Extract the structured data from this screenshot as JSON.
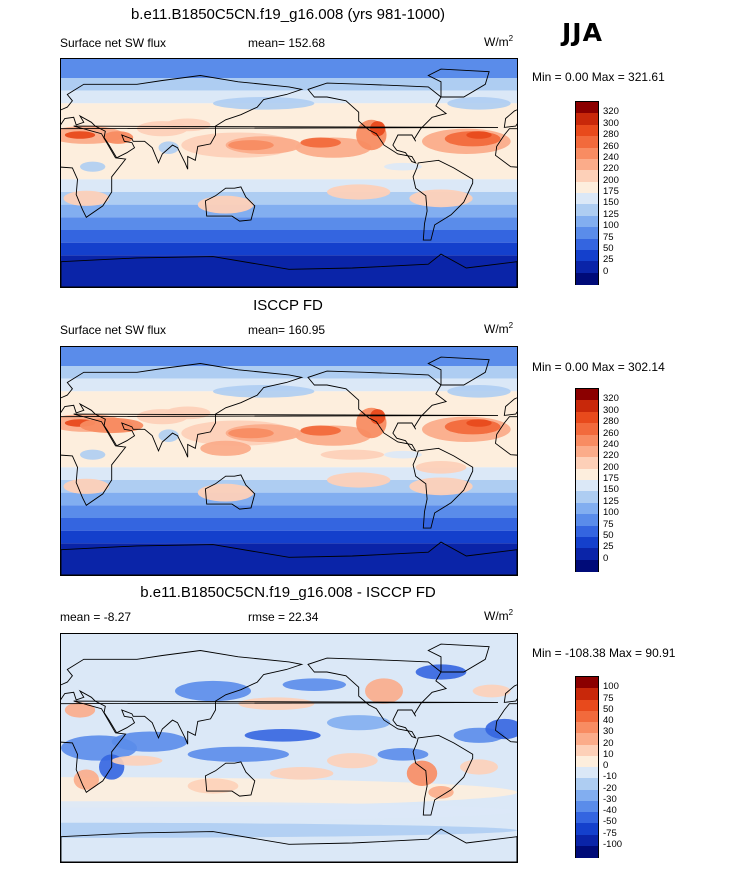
{
  "season": "JJA",
  "panels": [
    {
      "title": "b.e11.B1850C5CN.f19_g16.008 (yrs 981-1000)",
      "left_text": "Surface net SW flux",
      "center_text": "mean= 152.68",
      "units": "W/m",
      "units_sup": "2",
      "minmax": "Min =   0.00 Max = 321.61"
    },
    {
      "title": "ISCCP FD",
      "left_text": "Surface net SW flux",
      "center_text": "mean= 160.95",
      "units": "W/m",
      "units_sup": "2",
      "minmax": "Min =   0.00 Max = 302.14"
    },
    {
      "title": "b.e11.B1850C5CN.f19_g16.008 - ISCCP FD",
      "left_text": "mean =  -8.27",
      "center_text": "rmse =  22.34",
      "units": "W/m",
      "units_sup": "2",
      "minmax": "Min = -108.38 Max =  90.91"
    }
  ],
  "colorbar_abs": {
    "labels": [
      "320",
      "300",
      "280",
      "260",
      "240",
      "220",
      "200",
      "175",
      "150",
      "125",
      "100",
      "75",
      "50",
      "25",
      "0"
    ],
    "colors": [
      "#8b0000",
      "#c8280a",
      "#e84a1c",
      "#f26a3c",
      "#f88c62",
      "#fbac8a",
      "#fdd0b8",
      "#fdeedd",
      "#dbe8f7",
      "#aecdf2",
      "#82aef0",
      "#5a8cea",
      "#3465e0",
      "#1440cc",
      "#0a24a8",
      "#000b78"
    ]
  },
  "colorbar_diff": {
    "labels": [
      "100",
      "75",
      "50",
      "40",
      "30",
      "20",
      "10",
      "0",
      "-10",
      "-20",
      "-30",
      "-40",
      "-50",
      "-75",
      "-100"
    ],
    "colors": [
      "#8b0000",
      "#c8280a",
      "#e84a1c",
      "#f26a3c",
      "#f88c62",
      "#fbac8a",
      "#fdd0b8",
      "#fdeedd",
      "#dbe8f7",
      "#aecdf2",
      "#82aef0",
      "#5a8cea",
      "#3465e0",
      "#1440cc",
      "#0a24a8",
      "#000b78"
    ]
  },
  "map_colors": {
    "land_outline": "#000000",
    "abs_bands": [
      "#fdeedd",
      "#dbe8f7",
      "#aecdf2",
      "#82aef0",
      "#5a8cea",
      "#3465e0",
      "#1440cc",
      "#0a24a8"
    ],
    "abs_high": [
      "#f26a3c",
      "#e84a1c",
      "#c8280a",
      "#fbac8a",
      "#fdd0b8"
    ],
    "diff_pos": [
      "#fdd0b8",
      "#fbac8a",
      "#f88c62",
      "#e84a1c"
    ],
    "diff_neg": [
      "#dbe8f7",
      "#aecdf2",
      "#82aef0",
      "#5a8cea",
      "#3465e0",
      "#1440cc"
    ]
  }
}
